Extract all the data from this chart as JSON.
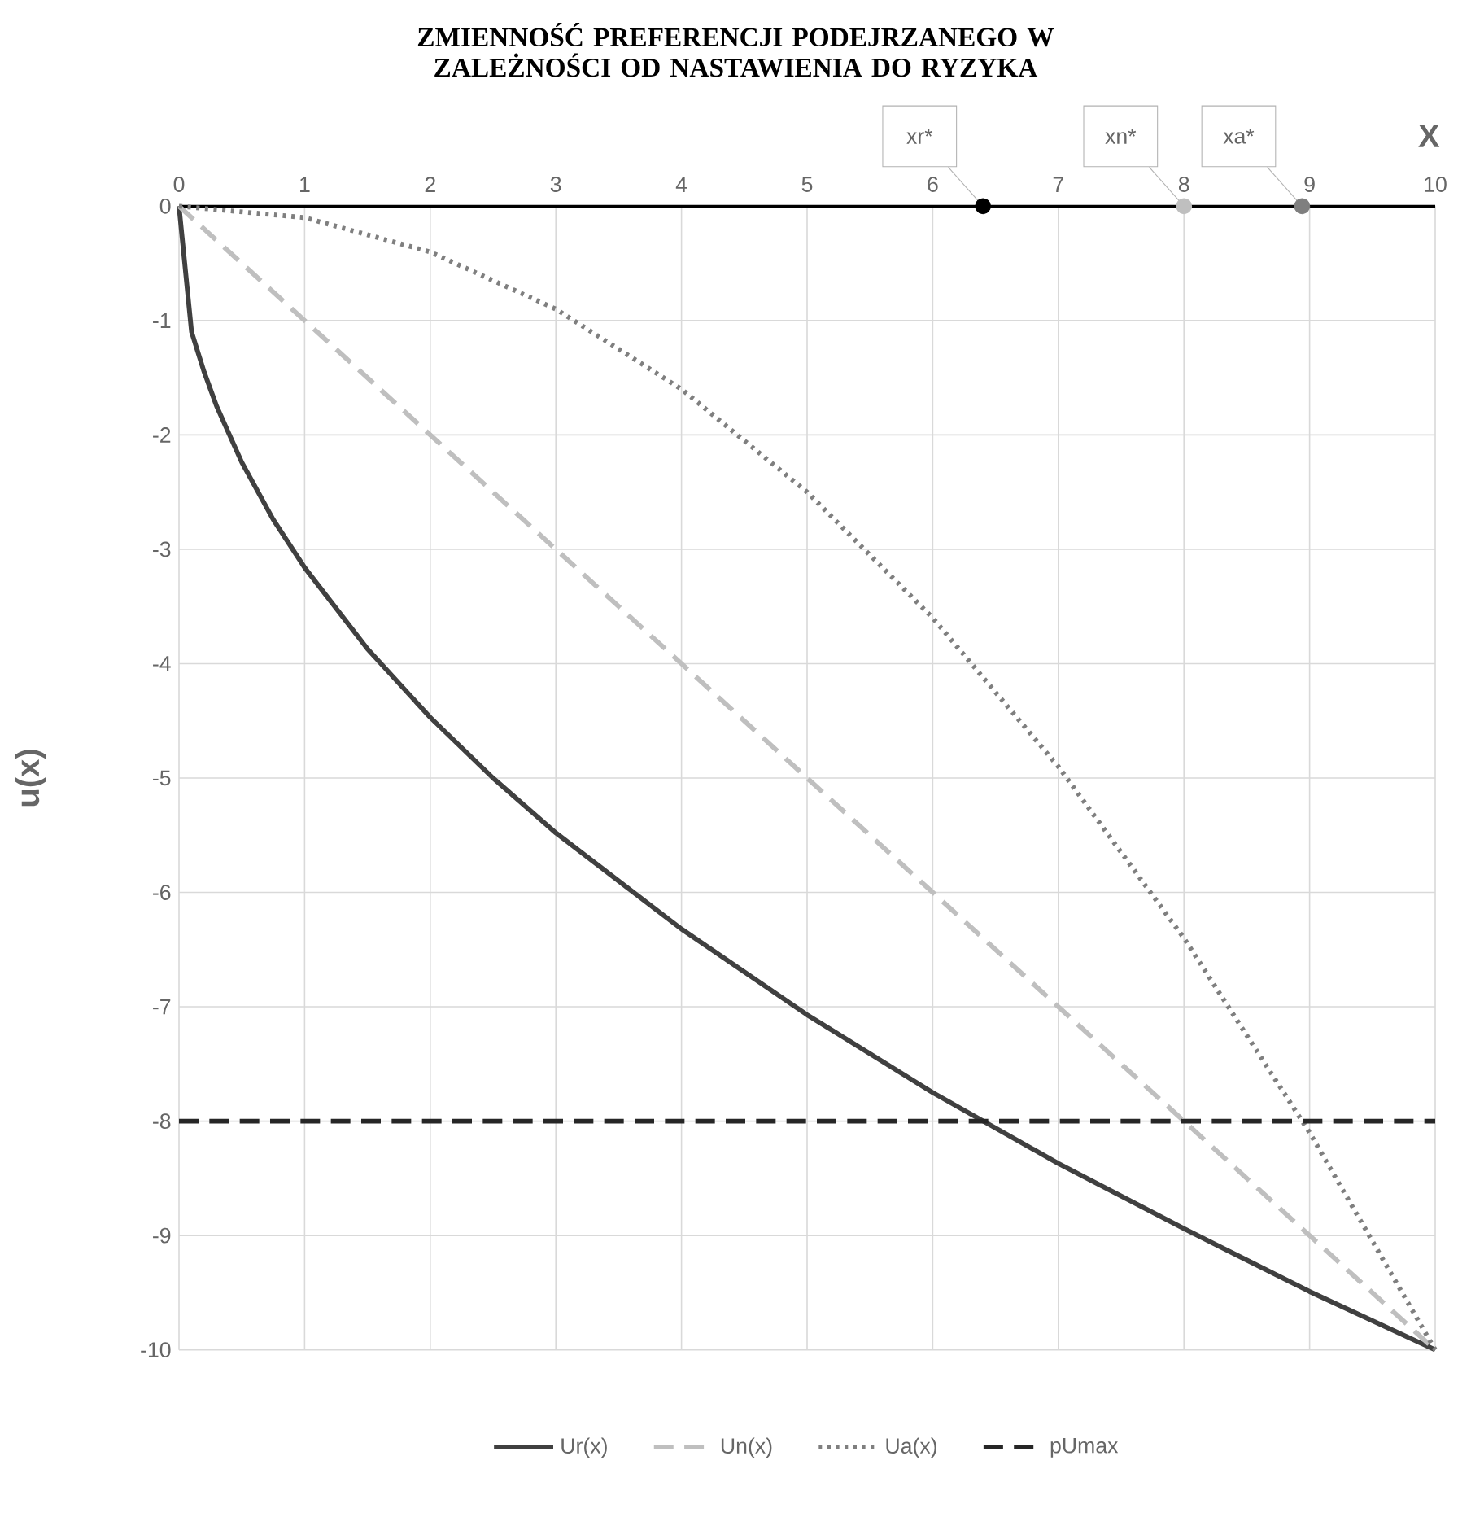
{
  "chart_data": {
    "type": "line",
    "title": "ZMIENNOŚĆ PREFERENCJI PODEJRZANEGO W ZALEŻNOŚCI OD NASTAWIENIA DO RYZYKA",
    "xlabel": "X",
    "ylabel": "u(x)",
    "xlim": [
      0,
      10
    ],
    "xticks": [
      0,
      1,
      2,
      3,
      4,
      5,
      6,
      7,
      8,
      9,
      10
    ],
    "ylim": [
      -10,
      0
    ],
    "yticks": [
      0,
      -1,
      -2,
      -3,
      -4,
      -5,
      -6,
      -7,
      -8,
      -9,
      -10
    ],
    "grid": true,
    "legend": "bottom",
    "series": [
      {
        "name": "Ur(x)",
        "type": "line",
        "color": "#404040",
        "line_style": "solid",
        "marker": "none",
        "x": [
          0,
          0.1,
          0.2,
          0.3,
          0.5,
          0.75,
          1,
          1.5,
          2,
          2.5,
          3,
          4,
          5,
          6,
          7,
          8,
          9,
          10
        ],
        "values": [
          0,
          -1.1,
          -1.45,
          -1.75,
          -2.24,
          -2.74,
          -3.16,
          -3.87,
          -4.47,
          -5,
          -5.48,
          -6.32,
          -7.07,
          -7.75,
          -8.37,
          -8.94,
          -9.49,
          -10
        ]
      },
      {
        "name": "Un(x)",
        "type": "line",
        "color": "#bfbfbf",
        "line_style": "dashed",
        "marker": "none",
        "x": [
          0,
          10
        ],
        "values": [
          0,
          -10
        ]
      },
      {
        "name": "Ua(x)",
        "type": "line",
        "color": "#7f7f7f",
        "line_style": "dotted",
        "marker": "none",
        "x": [
          0,
          1,
          2,
          3,
          4,
          5,
          6,
          7,
          8,
          9,
          10
        ],
        "values": [
          0,
          -0.1,
          -0.4,
          -0.9,
          -1.6,
          -2.5,
          -3.6,
          -4.9,
          -6.4,
          -8.1,
          -10
        ]
      },
      {
        "name": "pUmax",
        "type": "line",
        "color": "#262626",
        "line_style": "dashed",
        "marker": "none",
        "x": [
          0,
          10
        ],
        "values": [
          -8,
          -8
        ]
      },
      {
        "type": "scatter",
        "colors": [
          "#000000",
          "#bfbfbf",
          "#7f7f7f"
        ],
        "marker": "circle",
        "x": [
          6.4,
          8,
          8.94
        ],
        "values": [
          0,
          0,
          0
        ]
      }
    ],
    "annotations": [
      {
        "text": "xr*",
        "x": 6.4,
        "y": 0
      },
      {
        "text": "xn*",
        "x": 8,
        "y": 0
      },
      {
        "text": "xa*",
        "x": 8.94,
        "y": 0
      }
    ]
  }
}
